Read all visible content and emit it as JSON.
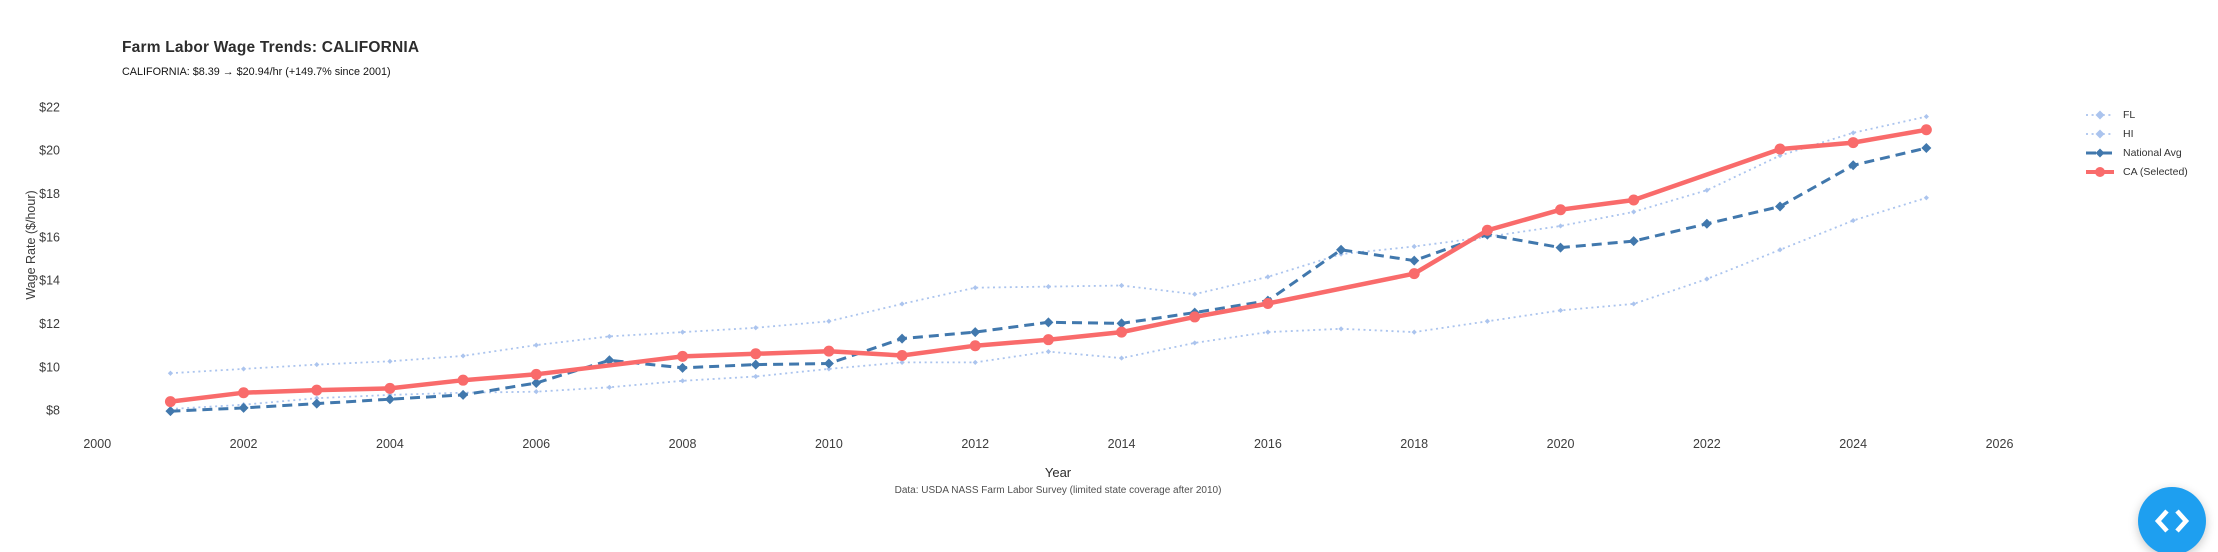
{
  "chart_data": {
    "type": "line",
    "title": "Farm Labor Wage Trends: CALIFORNIA",
    "subtitle": "CALIFORNIA: $8.39 → $20.94/hr (+149.7% since 2001)",
    "xlabel": "Year",
    "ylabel": "Wage Rate ($/hour)",
    "caption": "Data: USDA NASS Farm Labor Survey (limited state coverage after 2010)",
    "grid": false,
    "legend_position": "top-right",
    "xlim": [
      1999.6,
      2027.1
    ],
    "ylim": [
      7.08,
      23.7
    ],
    "xticks": [
      2000,
      2002,
      2004,
      2006,
      2008,
      2010,
      2012,
      2014,
      2016,
      2018,
      2020,
      2022,
      2024,
      2026
    ],
    "xtick_labels": [
      "2000",
      "2002",
      "2004",
      "2006",
      "2008",
      "2010",
      "2012",
      "2014",
      "2016",
      "2018",
      "2020",
      "2022",
      "2024",
      "2026"
    ],
    "ytick_values": [
      8,
      10,
      12,
      14,
      16,
      18,
      20,
      22
    ],
    "ytick_labels": [
      "$8",
      "$10",
      "$12",
      "$14",
      "$16",
      "$18",
      "$20",
      "$22"
    ],
    "x": [
      2001,
      2002,
      2003,
      2004,
      2005,
      2006,
      2007,
      2008,
      2009,
      2010,
      2011,
      2012,
      2013,
      2014,
      2015,
      2016,
      2017,
      2018,
      2019,
      2020,
      2021,
      2022,
      2023,
      2024,
      2025
    ],
    "series": [
      {
        "name": "FL",
        "color": "#abc4ee",
        "line": "dotted",
        "marker": "diamond",
        "values": [
          8.05,
          8.25,
          8.55,
          8.7,
          8.8,
          8.85,
          9.05,
          9.35,
          9.55,
          9.9,
          10.2,
          10.2,
          10.7,
          10.4,
          11.1,
          11.6,
          11.75,
          11.6,
          12.1,
          12.6,
          12.9,
          14.05,
          15.4,
          16.75,
          17.8
        ]
      },
      {
        "name": "HI",
        "color": "#abc4ee",
        "line": "dotted",
        "marker": "diamond",
        "values": [
          9.7,
          9.9,
          10.1,
          10.25,
          10.5,
          11.0,
          11.4,
          11.6,
          11.8,
          12.1,
          12.9,
          13.65,
          13.7,
          13.75,
          13.35,
          14.15,
          15.2,
          15.55,
          16.0,
          16.5,
          17.15,
          18.15,
          19.75,
          20.8,
          21.55
        ]
      },
      {
        "name": "National Avg",
        "color": "#4178ad",
        "line": "dashed",
        "marker": "diamond",
        "values": [
          7.95,
          8.1,
          8.3,
          8.5,
          8.7,
          9.25,
          10.3,
          9.95,
          10.1,
          10.15,
          11.3,
          11.6,
          12.05,
          12.0,
          12.5,
          13.05,
          15.4,
          14.9,
          16.1,
          15.5,
          15.8,
          16.6,
          17.4,
          19.3,
          20.1
        ]
      },
      {
        "name": "CA (Selected)",
        "color": "#f96b6b",
        "line": "solid",
        "marker": "circle",
        "values": [
          8.39,
          8.8,
          8.92,
          9.0,
          9.38,
          9.65,
          null,
          10.48,
          10.6,
          10.72,
          10.52,
          10.97,
          11.25,
          11.6,
          12.3,
          12.92,
          null,
          14.3,
          16.3,
          17.25,
          17.7,
          null,
          20.05,
          20.35,
          20.94
        ]
      }
    ]
  },
  "fab": {
    "icon": "code-chevrons",
    "color": "#1e9ff0"
  }
}
